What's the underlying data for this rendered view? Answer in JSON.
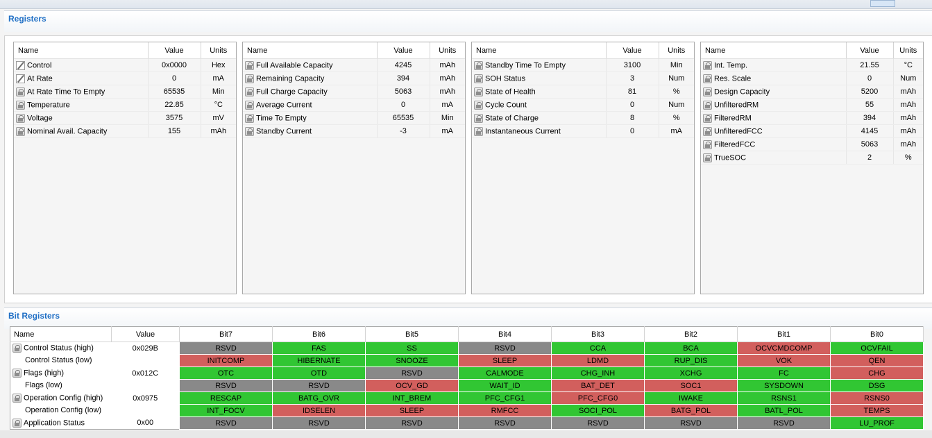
{
  "registers": {
    "title": "Registers",
    "columns": {
      "name": "Name",
      "value": "Value",
      "units": "Units"
    },
    "panels": [
      {
        "rows": [
          {
            "icon": "edit-icon",
            "name": "Control",
            "value": "0x0000",
            "units": "Hex"
          },
          {
            "icon": "edit-icon",
            "name": "At Rate",
            "value": "0",
            "units": "mA"
          },
          {
            "icon": "lock-icon",
            "name": "At Rate Time To Empty",
            "value": "65535",
            "units": "Min"
          },
          {
            "icon": "lock-icon",
            "name": "Temperature",
            "value": "22.85",
            "units": "°C"
          },
          {
            "icon": "lock-icon",
            "name": "Voltage",
            "value": "3575",
            "units": "mV"
          },
          {
            "icon": "lock-icon",
            "name": "Nominal Avail. Capacity",
            "value": "155",
            "units": "mAh"
          }
        ]
      },
      {
        "rows": [
          {
            "icon": "lock-icon",
            "name": "Full Available Capacity",
            "value": "4245",
            "units": "mAh"
          },
          {
            "icon": "lock-icon",
            "name": "Remaining Capacity",
            "value": "394",
            "units": "mAh"
          },
          {
            "icon": "lock-icon",
            "name": "Full Charge Capacity",
            "value": "5063",
            "units": "mAh"
          },
          {
            "icon": "lock-icon",
            "name": "Average Current",
            "value": "0",
            "units": "mA"
          },
          {
            "icon": "lock-icon",
            "name": "Time To Empty",
            "value": "65535",
            "units": "Min"
          },
          {
            "icon": "lock-icon",
            "name": "Standby Current",
            "value": "-3",
            "units": "mA"
          }
        ]
      },
      {
        "rows": [
          {
            "icon": "lock-icon",
            "name": "Standby Time To Empty",
            "value": "3100",
            "units": "Min"
          },
          {
            "icon": "lock-icon",
            "name": "SOH Status",
            "value": "3",
            "units": "Num"
          },
          {
            "icon": "lock-icon",
            "name": "State of Health",
            "value": "81",
            "units": "%"
          },
          {
            "icon": "lock-icon",
            "name": "Cycle Count",
            "value": "0",
            "units": "Num"
          },
          {
            "icon": "lock-icon",
            "name": "State of Charge",
            "value": "8",
            "units": "%"
          },
          {
            "icon": "lock-icon",
            "name": "Instantaneous Current",
            "value": "0",
            "units": "mA"
          }
        ]
      },
      {
        "rows": [
          {
            "icon": "lock-icon",
            "name": "Int. Temp.",
            "value": "21.55",
            "units": "°C"
          },
          {
            "icon": "lock-icon",
            "name": "Res. Scale",
            "value": "0",
            "units": "Num"
          },
          {
            "icon": "lock-icon",
            "name": "Design Capacity",
            "value": "5200",
            "units": "mAh"
          },
          {
            "icon": "lock-icon",
            "name": "UnfilteredRM",
            "value": "55",
            "units": "mAh"
          },
          {
            "icon": "lock-icon",
            "name": "FilteredRM",
            "value": "394",
            "units": "mAh"
          },
          {
            "icon": "lock-icon",
            "name": "UnfilteredFCC",
            "value": "4145",
            "units": "mAh"
          },
          {
            "icon": "lock-icon",
            "name": "FilteredFCC",
            "value": "5063",
            "units": "mAh"
          },
          {
            "icon": "lock-icon",
            "name": "TrueSOC",
            "value": "2",
            "units": "%"
          }
        ]
      }
    ]
  },
  "bit_registers": {
    "title": "Bit Registers",
    "columns": [
      "Name",
      "Value",
      "Bit7",
      "Bit6",
      "Bit5",
      "Bit4",
      "Bit3",
      "Bit2",
      "Bit1",
      "Bit0"
    ],
    "colors": {
      "green": "#31c633",
      "red": "#d25f5d",
      "gray": "#898989"
    },
    "rows": [
      {
        "icon": "lock-icon",
        "name": "Control Status (high)",
        "value": "0x029B",
        "bits": [
          {
            "label": "RSVD",
            "state": "gray"
          },
          {
            "label": "FAS",
            "state": "green"
          },
          {
            "label": "SS",
            "state": "green"
          },
          {
            "label": "RSVD",
            "state": "gray"
          },
          {
            "label": "CCA",
            "state": "green"
          },
          {
            "label": "BCA",
            "state": "green"
          },
          {
            "label": "OCVCMDCOMP",
            "state": "red"
          },
          {
            "label": "OCVFAIL",
            "state": "green"
          }
        ]
      },
      {
        "icon": "",
        "name": "Control Status (low)",
        "value": "",
        "bits": [
          {
            "label": "INITCOMP",
            "state": "red"
          },
          {
            "label": "HIBERNATE",
            "state": "green"
          },
          {
            "label": "SNOOZE",
            "state": "green"
          },
          {
            "label": "SLEEP",
            "state": "red"
          },
          {
            "label": "LDMD",
            "state": "red"
          },
          {
            "label": "RUP_DIS",
            "state": "green"
          },
          {
            "label": "VOK",
            "state": "red"
          },
          {
            "label": "QEN",
            "state": "red"
          }
        ]
      },
      {
        "icon": "lock-icon",
        "name": "Flags (high)",
        "value": "0x012C",
        "bits": [
          {
            "label": "OTC",
            "state": "green"
          },
          {
            "label": "OTD",
            "state": "green"
          },
          {
            "label": "RSVD",
            "state": "gray"
          },
          {
            "label": "CALMODE",
            "state": "green"
          },
          {
            "label": "CHG_INH",
            "state": "green"
          },
          {
            "label": "XCHG",
            "state": "green"
          },
          {
            "label": "FC",
            "state": "green"
          },
          {
            "label": "CHG",
            "state": "red"
          }
        ]
      },
      {
        "icon": "",
        "name": "Flags (low)",
        "value": "",
        "bits": [
          {
            "label": "RSVD",
            "state": "gray"
          },
          {
            "label": "RSVD",
            "state": "gray"
          },
          {
            "label": "OCV_GD",
            "state": "red"
          },
          {
            "label": "WAIT_ID",
            "state": "green"
          },
          {
            "label": "BAT_DET",
            "state": "red"
          },
          {
            "label": "SOC1",
            "state": "red"
          },
          {
            "label": "SYSDOWN",
            "state": "green"
          },
          {
            "label": "DSG",
            "state": "green"
          }
        ]
      },
      {
        "icon": "lock-icon",
        "name": "Operation Config (high)",
        "value": "0x0975",
        "bits": [
          {
            "label": "RESCAP",
            "state": "green"
          },
          {
            "label": "BATG_OVR",
            "state": "green"
          },
          {
            "label": "INT_BREM",
            "state": "green"
          },
          {
            "label": "PFC_CFG1",
            "state": "green"
          },
          {
            "label": "PFC_CFG0",
            "state": "red"
          },
          {
            "label": "IWAKE",
            "state": "green"
          },
          {
            "label": "RSNS1",
            "state": "green"
          },
          {
            "label": "RSNS0",
            "state": "red"
          }
        ]
      },
      {
        "icon": "",
        "name": "Operation Config (low)",
        "value": "",
        "bits": [
          {
            "label": "INT_FOCV",
            "state": "green"
          },
          {
            "label": "IDSELEN",
            "state": "red"
          },
          {
            "label": "SLEEP",
            "state": "red"
          },
          {
            "label": "RMFCC",
            "state": "red"
          },
          {
            "label": "SOCI_POL",
            "state": "green"
          },
          {
            "label": "BATG_POL",
            "state": "red"
          },
          {
            "label": "BATL_POL",
            "state": "green"
          },
          {
            "label": "TEMPS",
            "state": "red"
          }
        ]
      },
      {
        "icon": "lock-icon",
        "name": "Application Status",
        "value": "0x00",
        "bits": [
          {
            "label": "RSVD",
            "state": "gray"
          },
          {
            "label": "RSVD",
            "state": "gray"
          },
          {
            "label": "RSVD",
            "state": "gray"
          },
          {
            "label": "RSVD",
            "state": "gray"
          },
          {
            "label": "RSVD",
            "state": "gray"
          },
          {
            "label": "RSVD",
            "state": "gray"
          },
          {
            "label": "RSVD",
            "state": "gray"
          },
          {
            "label": "LU_PROF",
            "state": "green"
          }
        ]
      }
    ]
  }
}
